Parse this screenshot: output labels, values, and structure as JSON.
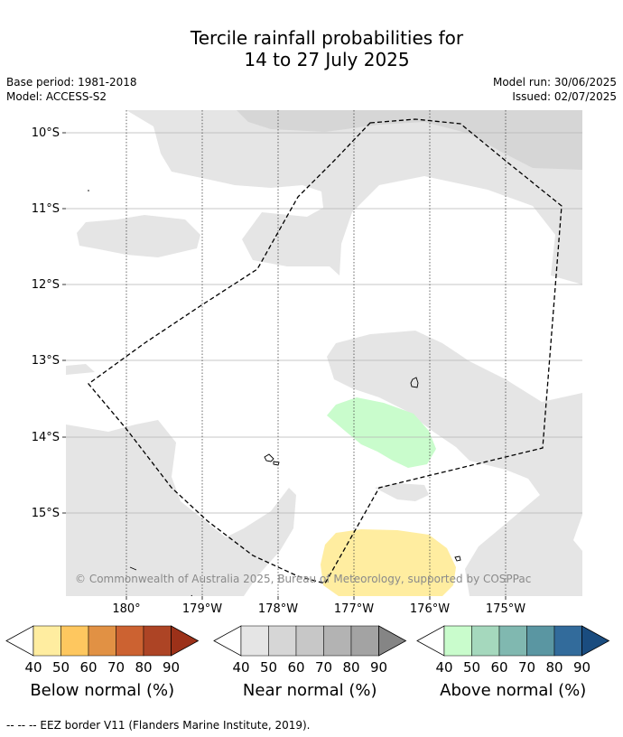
{
  "title_line1": "Tercile rainfall probabilities for",
  "title_line2": "14 to 27 July 2025",
  "meta": {
    "base_period": "Base period: 1981-2018",
    "model": "Model: ACCESS-S2",
    "model_run": "Model run: 30/06/2025",
    "issued": "Issued: 02/07/2025"
  },
  "map": {
    "lat_labels": [
      "10°S",
      "11°S",
      "12°S",
      "13°S",
      "14°S",
      "15°S"
    ],
    "lon_labels": [
      "180°",
      "179°W",
      "178°W",
      "177°W",
      "176°W",
      "175°W"
    ],
    "copyright": "© Commonwealth of Australia 2025, Bureau of Meteorology, supported by COSPPac",
    "colors": {
      "near_normal_40": "#e5e5e5",
      "near_normal_50": "#d6d6d6",
      "above_normal_40": "#c9fccc",
      "below_normal_40": "#ffeda0"
    }
  },
  "colorbars": [
    {
      "title": "Below normal (%)",
      "ticks": [
        "40",
        "50",
        "60",
        "70",
        "80",
        "90"
      ],
      "colors": [
        "#ffeda0",
        "#fec75f",
        "#e19144",
        "#cc6231",
        "#ad4425",
        "#9c3119"
      ]
    },
    {
      "title": "Near normal (%)",
      "ticks": [
        "40",
        "50",
        "60",
        "70",
        "80",
        "90"
      ],
      "colors": [
        "#e5e5e5",
        "#d6d6d6",
        "#c7c7c7",
        "#b3b3b3",
        "#a3a3a3",
        "#858585"
      ]
    },
    {
      "title": "Above normal (%)",
      "ticks": [
        "40",
        "50",
        "60",
        "70",
        "80",
        "90"
      ],
      "colors": [
        "#c9fccc",
        "#a5d8bd",
        "#80b8b0",
        "#5a96a2",
        "#326b9b",
        "#1a4c7f"
      ]
    }
  ],
  "footer": "--  --  -- EEZ border V11 (Flanders Marine Institute, 2019)."
}
